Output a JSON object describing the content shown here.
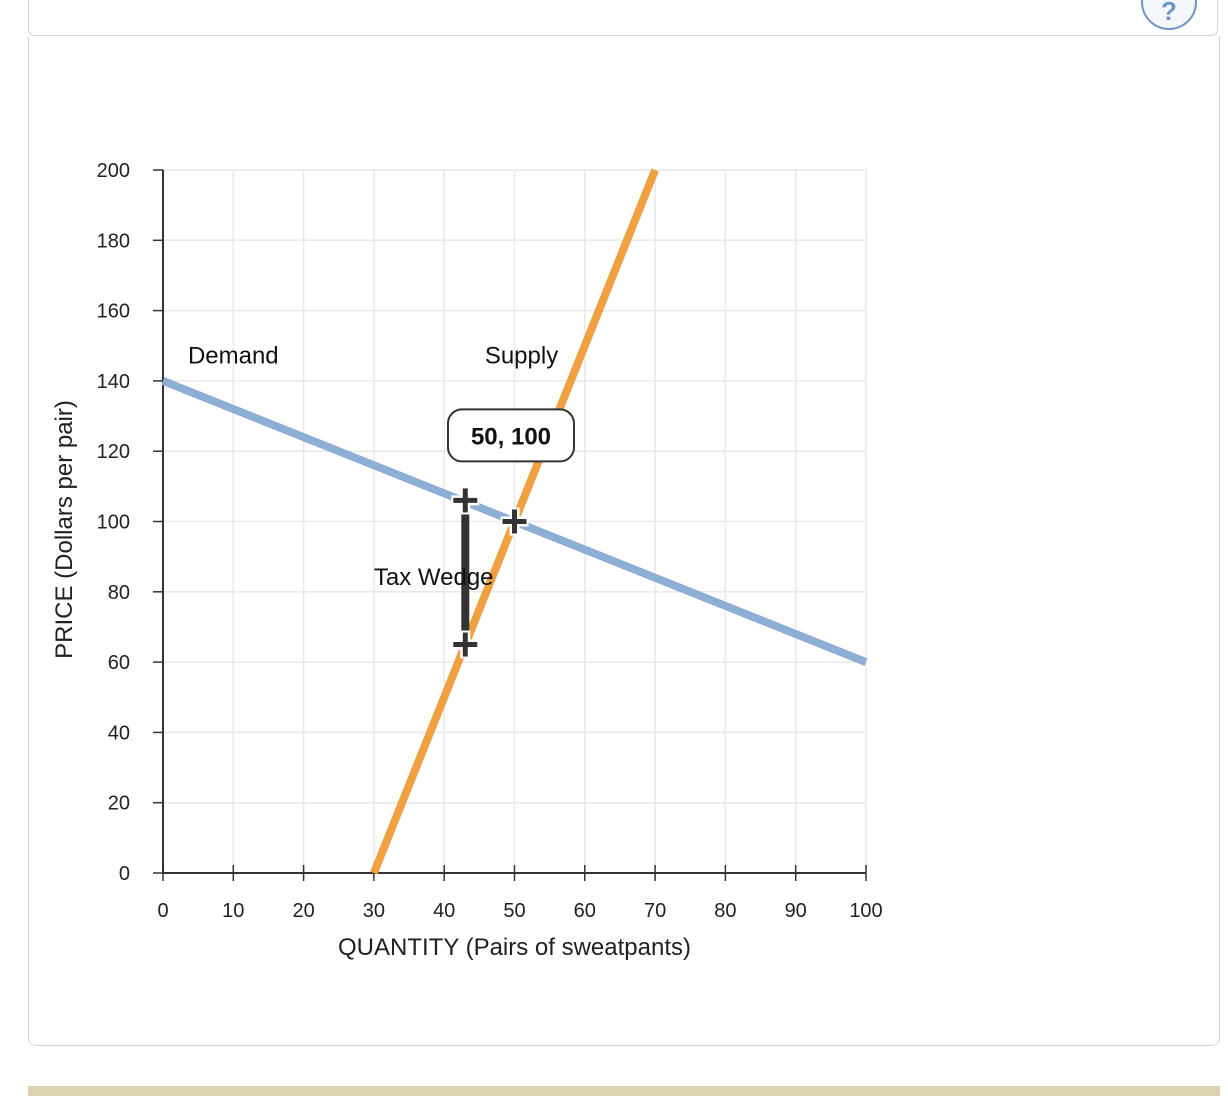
{
  "chart_data": {
    "type": "line",
    "xlabel": "QUANTITY (Pairs of sweatpants)",
    "ylabel": "PRICE (Dollars per pair)",
    "xlim": [
      0,
      100
    ],
    "ylim": [
      0,
      200
    ],
    "x_ticks": [
      0,
      10,
      20,
      30,
      40,
      50,
      60,
      70,
      80,
      90,
      100
    ],
    "y_ticks": [
      0,
      20,
      40,
      60,
      80,
      100,
      120,
      140,
      160,
      180,
      200
    ],
    "grid": true,
    "series": [
      {
        "name": "Demand",
        "color": "#8eaed6",
        "x": [
          0,
          100
        ],
        "y": [
          140,
          60
        ],
        "label_at": [
          10,
          145
        ]
      },
      {
        "name": "Supply",
        "color": "#f0a03e",
        "x": [
          30,
          70
        ],
        "y": [
          0,
          200
        ],
        "label_at": [
          51,
          145
        ]
      }
    ],
    "markers": [
      {
        "name": "equilibrium",
        "x": 50,
        "y": 100
      },
      {
        "name": "tax-wedge-top",
        "x": 43,
        "y": 106
      },
      {
        "name": "tax-wedge-bottom",
        "x": 43,
        "y": 65
      }
    ],
    "tax_wedge": {
      "label": "Tax Wedge",
      "x": 43,
      "y_top": 106,
      "y_bottom": 65,
      "label_at": [
        30,
        82
      ]
    },
    "point_label": {
      "text": "50, 100",
      "x": 50,
      "y": 100,
      "box_center": [
        49.5,
        124.5
      ]
    }
  },
  "help_icon": "?"
}
